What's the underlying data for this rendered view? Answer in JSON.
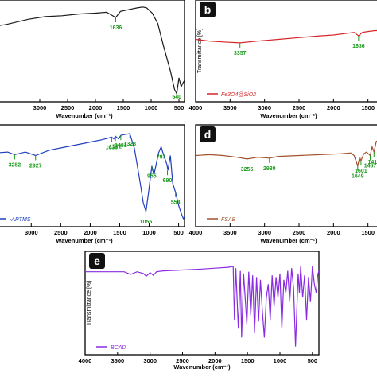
{
  "chart_data": [
    {
      "type": "line",
      "panel_letter": "",
      "xlabel": "Wavenumber (cm⁻¹)",
      "ylabel": "",
      "xlim": [
        4000,
        400
      ],
      "x_ticks": [
        "3000",
        "2500",
        "2000",
        "1500",
        "1000",
        "500"
      ],
      "x_tick_values": [
        3000,
        2500,
        2000,
        1500,
        1000,
        500
      ],
      "ylim": [
        0,
        100
      ],
      "legend": "",
      "color": "#1a1a1a",
      "series": [
        {
          "x": [
            4000,
            3600,
            3200,
            2900,
            2600,
            2300,
            2000,
            1800,
            1636,
            1550,
            1400,
            1250,
            1150,
            1080,
            980,
            880,
            780,
            650,
            580,
            540,
            500,
            460,
            430,
            400
          ],
          "y": [
            75,
            79,
            85,
            88,
            89,
            91,
            92,
            93,
            87,
            94,
            96,
            98,
            99,
            98,
            92,
            80,
            55,
            25,
            5,
            0,
            18,
            8,
            12,
            15
          ]
        }
      ],
      "annotations": [
        {
          "label": "1636",
          "x": 1636,
          "y": 87
        },
        {
          "label": "540",
          "x": 540,
          "y": 0
        }
      ]
    },
    {
      "type": "line",
      "panel_letter": "b",
      "xlabel": "Wavenumber (cm⁻¹)",
      "ylabel": "Transmittance [%]",
      "xlim": [
        4000,
        1300
      ],
      "x_ticks": [
        "4000",
        "3500",
        "3000",
        "2500",
        "2000",
        "1500"
      ],
      "x_tick_values": [
        4000,
        3500,
        3000,
        2500,
        2000,
        1500
      ],
      "ylim": [
        0,
        100
      ],
      "legend": "Fe3O4@SiO2",
      "color": "#d62728",
      "series": [
        {
          "x": [
            4000,
            3800,
            3600,
            3357,
            3100,
            2800,
            2500,
            2200,
            2000,
            1800,
            1700,
            1636,
            1580,
            1500,
            1400,
            1300
          ],
          "y": [
            62,
            60,
            59,
            58,
            60,
            62,
            64,
            66,
            67,
            69,
            70,
            66,
            70,
            71,
            72,
            72
          ]
        }
      ],
      "annotations": [
        {
          "label": "3357",
          "x": 3357,
          "y": 58
        },
        {
          "label": "1636",
          "x": 1636,
          "y": 66
        }
      ]
    },
    {
      "type": "line",
      "panel_letter": "",
      "xlabel": "Wavenumber (cm⁻¹)",
      "ylabel": "",
      "xlim": [
        3800,
        400
      ],
      "x_ticks": [
        "3000",
        "2500",
        "2000",
        "1500",
        "1000",
        "500"
      ],
      "x_tick_values": [
        3000,
        2500,
        2000,
        1500,
        1000,
        500
      ],
      "ylim": [
        0,
        100
      ],
      "legend": "-APTMS",
      "color": "#1f3fbf",
      "series": [
        {
          "x": [
            3800,
            3600,
            3400,
            3282,
            3100,
            2927,
            2700,
            2400,
            2100,
            1800,
            1636,
            1600,
            1572,
            1520,
            1481,
            1420,
            1328,
            1250,
            1150,
            1100,
            1055,
            1010,
            955,
            920,
            880,
            840,
            797,
            760,
            700,
            680,
            640,
            600,
            553,
            500,
            450,
            420,
            400
          ],
          "y": [
            74,
            75,
            76,
            73,
            76,
            72,
            78,
            82,
            86,
            90,
            93,
            91,
            94,
            91,
            95,
            96,
            97,
            80,
            40,
            18,
            8,
            30,
            60,
            50,
            62,
            75,
            82,
            74,
            62,
            55,
            72,
            40,
            30,
            15,
            5,
            0,
            2
          ]
        }
      ],
      "annotations": [
        {
          "label": "3282",
          "x": 3282,
          "y": 73
        },
        {
          "label": "2927",
          "x": 2927,
          "y": 72
        },
        {
          "label": "1636",
          "x": 1636,
          "y": 93
        },
        {
          "label": "1572",
          "x": 1572,
          "y": 94
        },
        {
          "label": "1481",
          "x": 1481,
          "y": 95
        },
        {
          "label": "1328",
          "x": 1328,
          "y": 97
        },
        {
          "label": "1055",
          "x": 1055,
          "y": 8
        },
        {
          "label": "955",
          "x": 955,
          "y": 60
        },
        {
          "label": "690",
          "x": 690,
          "y": 55
        },
        {
          "label": "797",
          "x": 797,
          "y": 82
        },
        {
          "label": "553",
          "x": 553,
          "y": 30
        }
      ]
    },
    {
      "type": "line",
      "panel_letter": "d",
      "xlabel": "Wavenumber (cm⁻¹)",
      "ylabel": "",
      "xlim": [
        4000,
        1300
      ],
      "x_ticks": [
        "4000",
        "3500",
        "3000",
        "2500",
        "2000",
        "1500"
      ],
      "x_tick_values": [
        4000,
        3500,
        3000,
        2500,
        2000,
        1500
      ],
      "ylim": [
        0,
        100
      ],
      "legend": "FSAB",
      "color": "#a0522d",
      "series": [
        {
          "x": [
            4000,
            3800,
            3600,
            3400,
            3255,
            3100,
            2930,
            2800,
            2500,
            2200,
            1900,
            1750,
            1700,
            1649,
            1620,
            1601,
            1560,
            1520,
            1467,
            1440,
            1412,
            1380,
            1340,
            1300
          ],
          "y": [
            72,
            73,
            72,
            70,
            68,
            70,
            69,
            71,
            72,
            73,
            74,
            75,
            72,
            60,
            70,
            66,
            74,
            76,
            72,
            82,
            76,
            88,
            90,
            92
          ]
        }
      ],
      "annotations": [
        {
          "label": "3255",
          "x": 3255,
          "y": 68
        },
        {
          "label": "2930",
          "x": 2930,
          "y": 69
        },
        {
          "label": "1649",
          "x": 1649,
          "y": 60
        },
        {
          "label": "1601",
          "x": 1601,
          "y": 66
        },
        {
          "label": "1467",
          "x": 1467,
          "y": 72
        },
        {
          "label": "1412",
          "x": 1412,
          "y": 76
        }
      ]
    },
    {
      "type": "line",
      "panel_letter": "e",
      "xlabel": "Wavenumber (cm⁻¹)",
      "ylabel": "Transmittance [%]",
      "xlim": [
        4000,
        400
      ],
      "x_ticks": [
        "4000",
        "3500",
        "3000",
        "2500",
        "2000",
        "1500",
        "1000",
        "500"
      ],
      "x_tick_values": [
        4000,
        3500,
        3000,
        2500,
        2000,
        1500,
        1000,
        500
      ],
      "ylim": [
        0,
        100
      ],
      "legend": "BCAD",
      "color": "#8a2be2",
      "series": [
        {
          "x": [
            4000,
            3700,
            3400,
            3300,
            3200,
            3100,
            3060,
            3000,
            2950,
            2900,
            2800,
            2500,
            2200,
            2000,
            1800,
            1720,
            1700,
            1680,
            1640,
            1610,
            1590,
            1560,
            1510,
            1480,
            1450,
            1420,
            1390,
            1360,
            1330,
            1300,
            1270,
            1240,
            1210,
            1180,
            1150,
            1120,
            1090,
            1060,
            1030,
            1000,
            970,
            940,
            910,
            880,
            850,
            820,
            790,
            760,
            740,
            720,
            700,
            680,
            650,
            620,
            590,
            560,
            530,
            500,
            470,
            440,
            420,
            400
          ],
          "y": [
            84,
            84,
            84,
            81,
            84,
            82,
            79,
            83,
            80,
            84,
            85,
            86,
            87,
            88,
            89,
            90,
            30,
            88,
            20,
            85,
            10,
            82,
            25,
            84,
            35,
            80,
            15,
            78,
            28,
            75,
            40,
            10,
            55,
            70,
            30,
            80,
            45,
            78,
            55,
            82,
            20,
            75,
            60,
            85,
            50,
            88,
            65,
            0,
            40,
            82,
            60,
            90,
            55,
            80,
            30,
            78,
            50,
            90,
            70,
            60,
            80,
            85
          ]
        }
      ],
      "annotations": []
    }
  ]
}
